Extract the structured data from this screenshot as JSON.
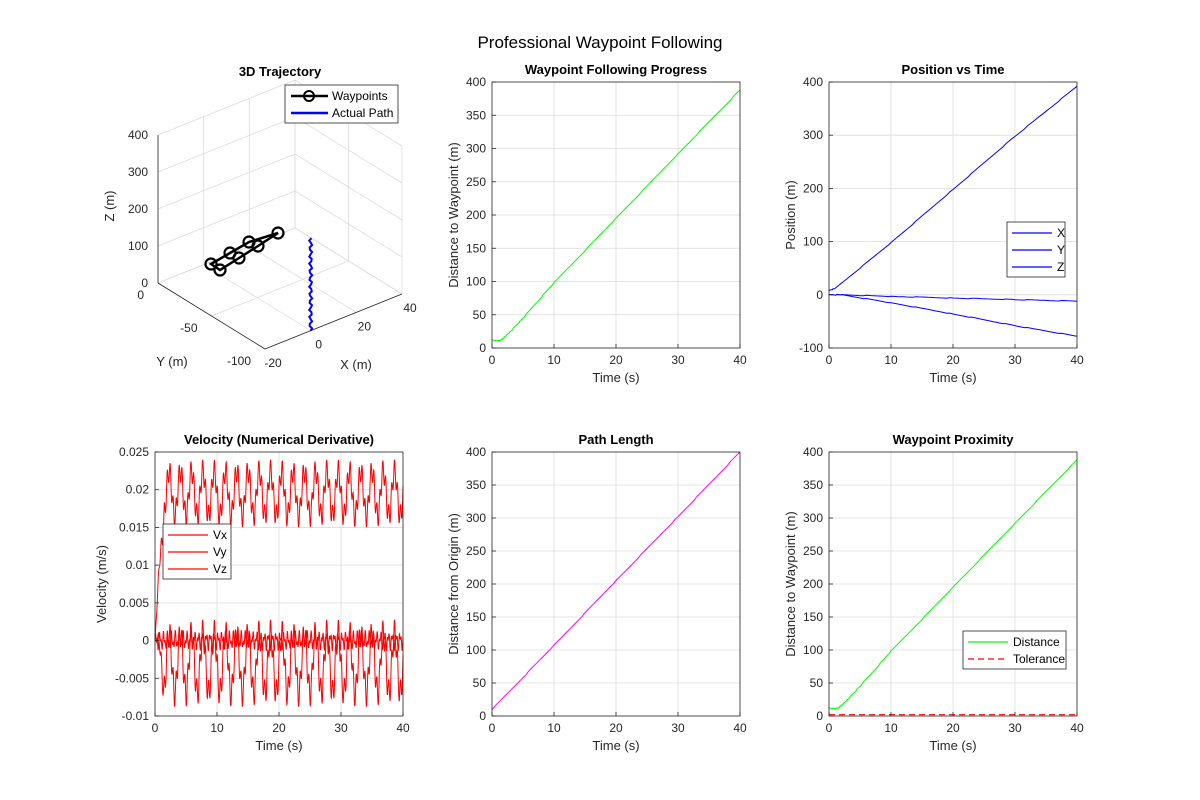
{
  "figure": {
    "title": "Professional Waypoint Following",
    "background": "#ffffff"
  },
  "colors": {
    "green": "#00ff00",
    "blue": "#0000ff",
    "red": "#ff0000",
    "magenta": "#ff00ff",
    "black": "#000000",
    "grid": "#dcdcdc",
    "axis": "#262626"
  },
  "chart_data": [
    {
      "id": "traj3d",
      "type": "line3d",
      "title": "3D Trajectory",
      "xlabel": "X (m)",
      "ylabel": "Y (m)",
      "zlabel": "Z (m)",
      "xlim": [
        -20,
        40
      ],
      "ylim": [
        -100,
        0
      ],
      "zlim": [
        0,
        400
      ],
      "xticks": [
        -20,
        0,
        20,
        40
      ],
      "yticks": [
        -100,
        -50,
        0
      ],
      "zticks": [
        0,
        100,
        200,
        300,
        400
      ],
      "grid": true,
      "legend": {
        "location": "top-right",
        "entries": [
          "Waypoints",
          "Actual Path"
        ]
      },
      "waypoints": [
        [
          0,
          -100,
          0
        ],
        [
          20,
          -100,
          0
        ],
        [
          40,
          -100,
          0
        ],
        [
          10,
          -100,
          100
        ],
        [
          30,
          -100,
          100
        ],
        [
          0,
          -100,
          0
        ]
      ],
      "actual_path": {
        "from": [
          0,
          -100,
          0
        ],
        "to": [
          0,
          -100,
          250
        ]
      }
    },
    {
      "id": "progress",
      "type": "line",
      "title": "Waypoint Following Progress",
      "xlabel": "Time (s)",
      "ylabel": "Distance to Waypoint (m)",
      "xlim": [
        0,
        40
      ],
      "ylim": [
        0,
        400
      ],
      "xticks": [
        0,
        10,
        20,
        30,
        40
      ],
      "yticks": [
        0,
        50,
        100,
        150,
        200,
        250,
        300,
        350,
        400
      ],
      "grid": true,
      "series": [
        {
          "color": "#00ff00",
          "x": [
            0,
            1,
            1.5,
            2,
            3,
            5,
            10,
            20,
            30,
            40
          ],
          "y": [
            12,
            11,
            12,
            16,
            25,
            45,
            98,
            195,
            292,
            388
          ]
        }
      ]
    },
    {
      "id": "position",
      "type": "line",
      "title": "Position vs Time",
      "xlabel": "Time (s)",
      "ylabel": "Position (m)",
      "xlim": [
        0,
        40
      ],
      "ylim": [
        -100,
        400
      ],
      "xticks": [
        0,
        10,
        20,
        30,
        40
      ],
      "yticks": [
        -100,
        0,
        100,
        200,
        300,
        400
      ],
      "grid": true,
      "legend": {
        "location": "right",
        "entries": [
          "X",
          "Y",
          "Z"
        ]
      },
      "series": [
        {
          "name": "X",
          "color": "#0000ff",
          "x": [
            0,
            1,
            10,
            20,
            30,
            40
          ],
          "y": [
            8,
            12,
            98,
            198,
            298,
            392
          ]
        },
        {
          "name": "Y",
          "color": "#0000ff",
          "x": [
            0,
            2,
            10,
            20,
            30,
            40
          ],
          "y": [
            0,
            0,
            -3,
            -6,
            -9,
            -12
          ]
        },
        {
          "name": "Z",
          "color": "#0000ff",
          "x": [
            0,
            2,
            10,
            20,
            30,
            40
          ],
          "y": [
            0,
            0,
            -15,
            -36,
            -58,
            -78
          ]
        }
      ]
    },
    {
      "id": "velocity",
      "type": "line",
      "title": "Velocity (Numerical Derivative)",
      "xlabel": "Time (s)",
      "ylabel": "Velocity (m/s)",
      "xlim": [
        0,
        40
      ],
      "ylim": [
        -0.01,
        0.025
      ],
      "xticks": [
        0,
        10,
        20,
        30,
        40
      ],
      "yticks": [
        -0.01,
        -0.005,
        0,
        0.005,
        0.01,
        0.015,
        0.02,
        0.025
      ],
      "ytick_labels": [
        "-0.01",
        "-0.005",
        "0",
        "0.005",
        "0.01",
        "0.015",
        "0.02",
        "0.025"
      ],
      "grid": true,
      "legend": {
        "location": "left",
        "entries": [
          "Vx",
          "Vy",
          "Vz"
        ]
      },
      "series": [
        {
          "name": "Vx",
          "color": "#ff0000",
          "mean": 0.0195,
          "amp1": 0.003,
          "freq1": 0.55,
          "amp2": 0.0015,
          "freq2": 2.1,
          "min": 0.015,
          "max": 0.024,
          "rise_end": 1.5
        },
        {
          "name": "Vy",
          "color": "#ff0000",
          "mean": 0.0,
          "amp1": 0.0008,
          "freq1": 1.6,
          "amp2": 0.0006,
          "freq2": 3.1,
          "min": -0.002,
          "max": 0.002,
          "rise_end": 0
        },
        {
          "name": "Vz",
          "color": "#ff0000",
          "mean": -0.003,
          "amp1": 0.004,
          "freq1": 0.55,
          "amp2": 0.0018,
          "freq2": 2.1,
          "min": -0.0095,
          "max": 0.004,
          "rise_end": 1.5
        }
      ]
    },
    {
      "id": "pathlen",
      "type": "line",
      "title": "Path Length",
      "xlabel": "Time (s)",
      "ylabel": "Distance from Origin (m)",
      "xlim": [
        0,
        40
      ],
      "ylim": [
        0,
        400
      ],
      "xticks": [
        0,
        10,
        20,
        30,
        40
      ],
      "yticks": [
        0,
        50,
        100,
        150,
        200,
        250,
        300,
        350,
        400
      ],
      "grid": true,
      "series": [
        {
          "color": "#ff00ff",
          "x": [
            0,
            10,
            20,
            30,
            40
          ],
          "y": [
            10,
            107,
            205,
            302,
            400
          ]
        }
      ]
    },
    {
      "id": "proximity",
      "type": "line",
      "title": "Waypoint Proximity",
      "xlabel": "Time (s)",
      "ylabel": "Distance to Waypoint (m)",
      "xlim": [
        0,
        40
      ],
      "ylim": [
        0,
        400
      ],
      "xticks": [
        0,
        10,
        20,
        30,
        40
      ],
      "yticks": [
        0,
        50,
        100,
        150,
        200,
        250,
        300,
        350,
        400
      ],
      "grid": true,
      "legend": {
        "location": "right",
        "entries": [
          "Distance",
          "Tolerance"
        ]
      },
      "series": [
        {
          "name": "Distance",
          "color": "#00ff00",
          "x": [
            0,
            1,
            1.5,
            2,
            3,
            5,
            10,
            20,
            30,
            40
          ],
          "y": [
            12,
            11,
            12,
            16,
            25,
            45,
            98,
            195,
            292,
            388
          ]
        },
        {
          "name": "Tolerance",
          "color": "#ff0000",
          "dashed": true,
          "x": [
            0,
            40
          ],
          "y": [
            2,
            2
          ]
        }
      ]
    }
  ]
}
